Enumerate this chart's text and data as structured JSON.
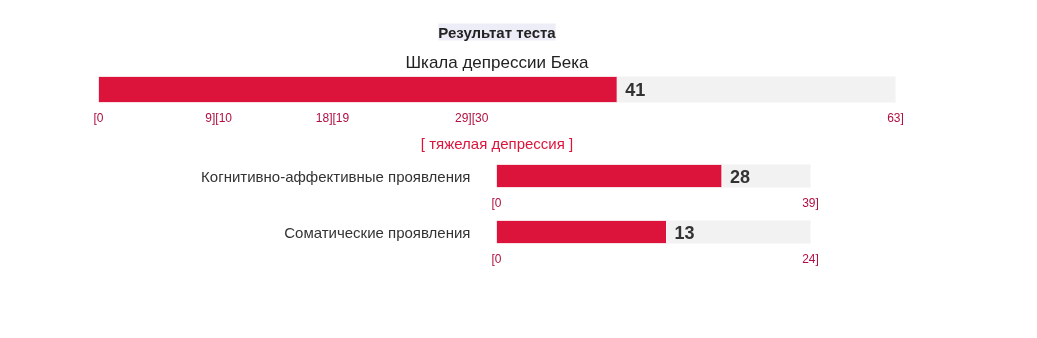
{
  "chart_data": [
    {
      "type": "bar",
      "orientation": "horizontal",
      "title": "Результат теста",
      "subtitle": "Шкала депрессии Бека",
      "categories": [
        null
      ],
      "values": [
        41
      ],
      "color": "#dc143c",
      "data_labels": true,
      "xlim": [
        0,
        63
      ],
      "xticks": [
        {
          "value": 0,
          "label": "[0"
        },
        {
          "value": 9.5,
          "label": "9][10"
        },
        {
          "value": 18.5,
          "label": "18][19"
        },
        {
          "value": 29.5,
          "label": "29][30"
        },
        {
          "value": 63,
          "label": "63]"
        }
      ],
      "annotations": [
        "[ тяжелая депрессия ]"
      ]
    },
    {
      "type": "bar",
      "orientation": "horizontal",
      "categories": [
        "Когнитивно-аффективные проявления"
      ],
      "values": [
        28
      ],
      "color": "#dc143c",
      "data_labels": true,
      "xlim": [
        0,
        39
      ],
      "xticks": [
        {
          "value": 0,
          "label": "[0"
        },
        {
          "value": 39,
          "label": "39]"
        }
      ]
    },
    {
      "type": "bar",
      "orientation": "horizontal",
      "categories": [
        "Соматические проявления"
      ],
      "values": [
        13
      ],
      "color": "#dc143c",
      "data_labels": true,
      "xlim": [
        0,
        24
      ],
      "xticks": [
        {
          "value": 0,
          "label": "[0"
        },
        {
          "value": 24,
          "label": "24]"
        }
      ]
    }
  ]
}
